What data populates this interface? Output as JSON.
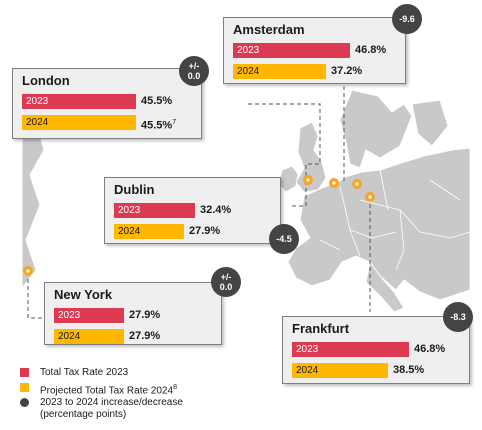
{
  "colors": {
    "y2023": "#dc3a52",
    "y2024": "#ffb700",
    "badge": "#444444",
    "marker": "#f5a623",
    "land": "#c9c9c9",
    "land_stroke": "#ffffff"
  },
  "chart_data": {
    "type": "bar",
    "series": [
      {
        "name": "Total Tax Rate 2023",
        "key": "2023"
      },
      {
        "name": "Projected Total Tax Rate 2024",
        "key": "2024"
      }
    ],
    "cities": [
      {
        "id": "amsterdam",
        "name": "Amsterdam",
        "rate_2023": 46.8,
        "rate_2024": 37.2,
        "label_2023": "46.8%",
        "label_2024": "37.2%",
        "label_2024_note": "",
        "change": "-9.6"
      },
      {
        "id": "london",
        "name": "London",
        "rate_2023": 45.5,
        "rate_2024": 45.5,
        "label_2023": "45.5%",
        "label_2024": "45.5%",
        "label_2024_note": "7",
        "change": "+/-\n0.0"
      },
      {
        "id": "dublin",
        "name": "Dublin",
        "rate_2023": 32.4,
        "rate_2024": 27.9,
        "label_2023": "32.4%",
        "label_2024": "27.9%",
        "label_2024_note": "",
        "change": "-4.5"
      },
      {
        "id": "newyork",
        "name": "New York",
        "rate_2023": 27.9,
        "rate_2024": 27.9,
        "label_2023": "27.9%",
        "label_2024": "27.9%",
        "label_2024_note": "",
        "change": "+/-\n0.0"
      },
      {
        "id": "frankfurt",
        "name": "Frankfurt",
        "rate_2023": 46.8,
        "rate_2024": 38.5,
        "label_2023": "46.8%",
        "label_2024": "38.5%",
        "label_2024_note": "",
        "change": "-8.3"
      }
    ],
    "bar_labels": {
      "y2023": "2023",
      "y2024": "2024"
    }
  },
  "legend": {
    "total_2023": "Total Tax Rate 2023",
    "projected_2024": "Projected Total Tax Rate 2024",
    "projected_2024_note": "8",
    "change_line1": "2023 to 2024 increase/decrease",
    "change_line2": "(percentage points)"
  }
}
